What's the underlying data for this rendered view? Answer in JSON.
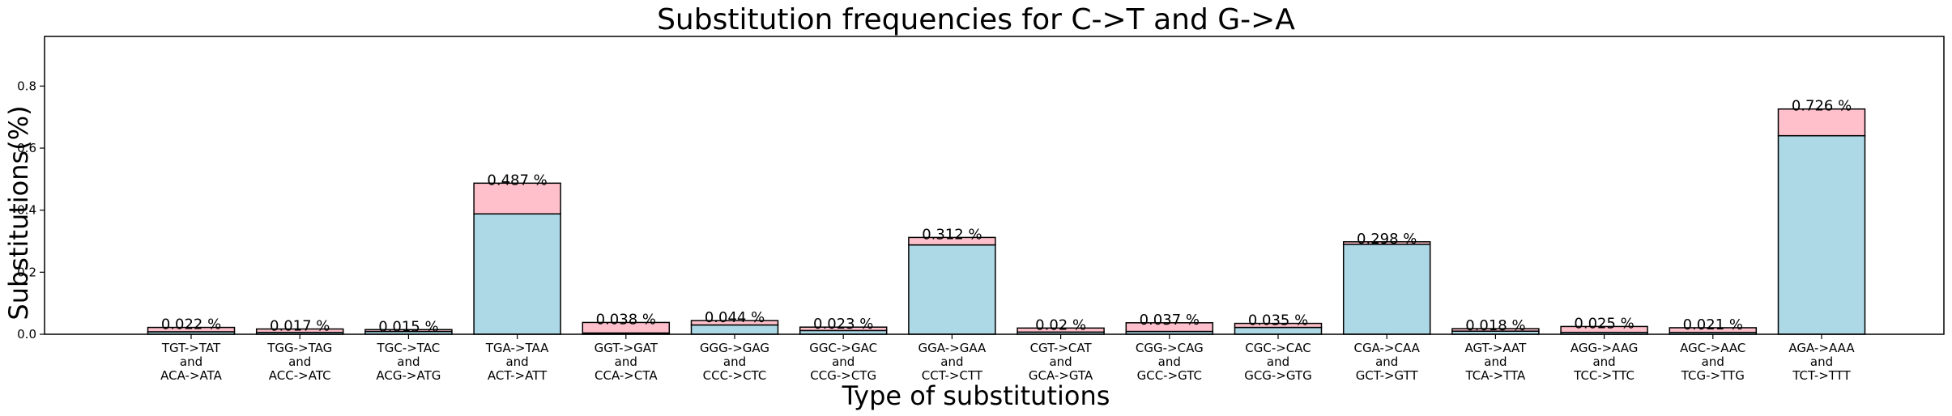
{
  "chart_data": {
    "type": "bar",
    "title": "Substitution frequencies for C->T and G->A",
    "xlabel": "Type of substitutions",
    "ylabel": "Substitutions(%)",
    "ylim": [
      0,
      0.96
    ],
    "yticks": [
      0.0,
      0.2,
      0.4,
      0.6,
      0.8
    ],
    "ytick_labels": [
      "0.0",
      "0.2",
      "0.4",
      "0.6",
      "0.8"
    ],
    "grid": false,
    "stacked": true,
    "colors": {
      "lower": "#add8e6",
      "upper": "#ffc0cb",
      "edge": "#000000"
    },
    "categories": [
      [
        "TGT->TAT",
        "and",
        "ACA->ATA"
      ],
      [
        "TGG->TAG",
        "and",
        "ACC->ATC"
      ],
      [
        "TGC->TAC",
        "and",
        "ACG->ATG"
      ],
      [
        "TGA->TAA",
        "and",
        "ACT->ATT"
      ],
      [
        "GGT->GAT",
        "and",
        "CCA->CTA"
      ],
      [
        "GGG->GAG",
        "and",
        "CCC->CTC"
      ],
      [
        "GGC->GAC",
        "and",
        "CCG->CTG"
      ],
      [
        "GGA->GAA",
        "and",
        "CCT->CTT"
      ],
      [
        "CGT->CAT",
        "and",
        "GCA->GTA"
      ],
      [
        "CGG->CAG",
        "and",
        "GCC->GTC"
      ],
      [
        "CGC->CAC",
        "and",
        "GCG->GTG"
      ],
      [
        "CGA->CAA",
        "and",
        "GCT->GTT"
      ],
      [
        "AGT->AAT",
        "and",
        "TCA->TTA"
      ],
      [
        "AGG->AAG",
        "and",
        "TCC->TTC"
      ],
      [
        "AGC->AAC",
        "and",
        "TCG->TTG"
      ],
      [
        "AGA->AAA",
        "and",
        "TCT->TTT"
      ]
    ],
    "series": [
      {
        "values": [
          0.008,
          0.006,
          0.009,
          0.388,
          0.004,
          0.03,
          0.012,
          0.288,
          0.007,
          0.009,
          0.022,
          0.29,
          0.01,
          0.006,
          0.006,
          0.64
        ]
      },
      {
        "values": [
          0.014,
          0.011,
          0.006,
          0.099,
          0.034,
          0.014,
          0.011,
          0.024,
          0.013,
          0.028,
          0.013,
          0.008,
          0.008,
          0.019,
          0.015,
          0.086
        ]
      }
    ],
    "totals": [
      0.022,
      0.017,
      0.015,
      0.487,
      0.038,
      0.044,
      0.023,
      0.312,
      0.02,
      0.037,
      0.035,
      0.298,
      0.018,
      0.025,
      0.021,
      0.726
    ],
    "data_labels": [
      "0.022 %",
      "0.017 %",
      "0.015 %",
      "0.487 %",
      "0.038 %",
      "0.044 %",
      "0.023 %",
      "0.312 %",
      "0.02 %",
      "0.037 %",
      "0.035 %",
      "0.298 %",
      "0.018 %",
      "0.025 %",
      "0.021 %",
      "0.726 %"
    ]
  }
}
